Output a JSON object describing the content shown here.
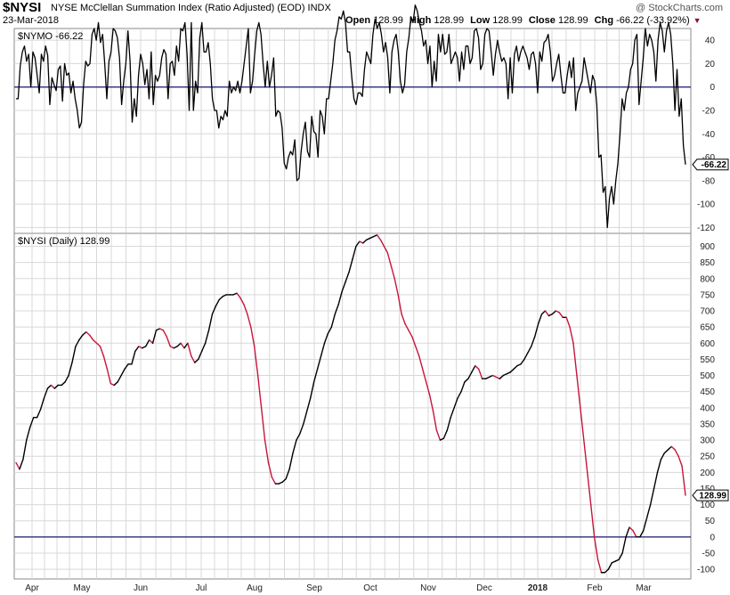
{
  "header": {
    "ticker": "$NYSI",
    "description": "NYSE McClellan Summation Index (Ratio Adjusted) (EOD)  INDX",
    "date": "23-Mar-2018",
    "copyright": "@ StockCharts.com",
    "open_label": "Open",
    "open": "128.99",
    "high_label": "High",
    "high": "128.99",
    "low_label": "Low",
    "low": "128.99",
    "close_label": "Close",
    "close": "128.99",
    "chg_label": "Chg",
    "chg": "-66.22 (-33.92%)"
  },
  "colors": {
    "line": "#000000",
    "down_line": "#c8143c",
    "zero_line": "#1a1a6e",
    "grid": "#d8d8d8",
    "down_arrow": "#8b0a3c"
  },
  "chart_data": [
    {
      "id": "nymo",
      "type": "line",
      "panel_label": "$NYMO -66.22",
      "last_value_label": "-66.22",
      "ylim": [
        -125,
        50
      ],
      "yticks": [
        40,
        20,
        0,
        -20,
        -40,
        -60,
        -80,
        -100,
        -120
      ],
      "reference_line": 0,
      "grid": true,
      "x_dates": [
        "2018-03-23"
      ],
      "values": [
        -10,
        -10,
        18,
        30,
        35,
        22,
        28,
        0,
        30,
        25,
        10,
        -5,
        28,
        22,
        35,
        27,
        -15,
        8,
        2,
        -3,
        15,
        18,
        -12,
        20,
        10,
        12,
        -5,
        5,
        -10,
        -20,
        -35,
        -30,
        2,
        22,
        18,
        20,
        45,
        50,
        40,
        55,
        38,
        45,
        20,
        -10,
        22,
        30,
        50,
        48,
        42,
        25,
        -15,
        5,
        20,
        48,
        22,
        -30,
        -10,
        -25,
        10,
        28,
        20,
        2,
        15,
        -10,
        30,
        -15,
        10,
        5,
        10,
        25,
        32,
        28,
        -10,
        20,
        22,
        10,
        35,
        22,
        50,
        48,
        55,
        28,
        -20,
        55,
        -20,
        5,
        -5,
        42,
        55,
        30,
        30,
        38,
        20,
        -10,
        -20,
        -20,
        -35,
        -25,
        -28,
        -20,
        -25,
        5,
        -5,
        0,
        -3,
        5,
        -5,
        5,
        20,
        35,
        50,
        -5,
        5,
        28,
        48,
        55,
        45,
        20,
        0,
        22,
        0,
        10,
        25,
        -25,
        -20,
        -22,
        -35,
        -65,
        -70,
        -60,
        -55,
        -58,
        -45,
        -80,
        -78,
        -55,
        -40,
        -30,
        -55,
        -60,
        -25,
        -38,
        -40,
        -60,
        -20,
        -25,
        -40,
        -10,
        -10,
        5,
        20,
        40,
        48,
        60,
        58,
        65,
        55,
        30,
        30,
        8,
        -10,
        -15,
        -5,
        -5,
        -8,
        15,
        30,
        25,
        20,
        45,
        58,
        50,
        55,
        45,
        30,
        38,
        25,
        -5,
        30,
        40,
        45,
        30,
        5,
        -5,
        2,
        30,
        42,
        60,
        55,
        70,
        65,
        55,
        48,
        35,
        40,
        20,
        35,
        0,
        22,
        5,
        45,
        30,
        45,
        28,
        30,
        45,
        20,
        25,
        30,
        25,
        5,
        30,
        15,
        35,
        35,
        20,
        25,
        48,
        50,
        42,
        15,
        20,
        45,
        50,
        48,
        30,
        10,
        28,
        40,
        30,
        22,
        25,
        20,
        -10,
        25,
        -5,
        28,
        35,
        22,
        30,
        35,
        30,
        25,
        15,
        28,
        30,
        20,
        -5,
        30,
        22,
        38,
        40,
        45,
        30,
        5,
        10,
        20,
        28,
        10,
        -5,
        -5,
        10,
        22,
        8,
        25,
        -20,
        -5,
        0,
        5,
        25,
        15,
        5,
        -5,
        10,
        5,
        -15,
        -60,
        -58,
        -90,
        -85,
        -120,
        -95,
        -85,
        -100,
        -80,
        -65,
        -40,
        -10,
        -20,
        -5,
        0,
        15,
        20,
        40,
        45,
        -15,
        5,
        25,
        50,
        35,
        45,
        40,
        30,
        5,
        40,
        55,
        48,
        30,
        48,
        55,
        45,
        20,
        -20,
        15,
        -25,
        -10,
        -50,
        -66.22
      ]
    },
    {
      "id": "nysi",
      "type": "line",
      "panel_label": "$NYSI (Daily) 128.99",
      "last_value_label": "128.99",
      "ylim": [
        -130,
        940
      ],
      "yticks": [
        900,
        850,
        800,
        750,
        700,
        650,
        600,
        550,
        500,
        450,
        400,
        350,
        300,
        250,
        200,
        150,
        100,
        50,
        0,
        -50,
        -100
      ],
      "reference_line": 0,
      "grid": true,
      "values": [
        230,
        210,
        240,
        300,
        340,
        370,
        370,
        395,
        430,
        460,
        470,
        460,
        470,
        470,
        480,
        500,
        540,
        590,
        610,
        625,
        635,
        625,
        610,
        600,
        590,
        560,
        520,
        475,
        470,
        480,
        500,
        520,
        535,
        535,
        575,
        590,
        585,
        590,
        610,
        600,
        640,
        645,
        640,
        620,
        590,
        585,
        590,
        600,
        585,
        600,
        560,
        540,
        550,
        575,
        600,
        640,
        690,
        715,
        735,
        745,
        750,
        750,
        750,
        755,
        740,
        720,
        690,
        650,
        590,
        500,
        400,
        300,
        230,
        185,
        165,
        165,
        170,
        180,
        210,
        260,
        300,
        320,
        350,
        390,
        430,
        480,
        520,
        560,
        600,
        630,
        650,
        690,
        720,
        760,
        790,
        820,
        860,
        900,
        915,
        910,
        920,
        925,
        930,
        935,
        920,
        900,
        880,
        840,
        800,
        750,
        690,
        660,
        640,
        620,
        590,
        560,
        520,
        480,
        440,
        390,
        330,
        300,
        305,
        330,
        370,
        400,
        430,
        450,
        480,
        490,
        510,
        530,
        520,
        490,
        490,
        495,
        500,
        495,
        490,
        500,
        505,
        510,
        520,
        530,
        535,
        550,
        570,
        590,
        620,
        660,
        690,
        700,
        685,
        690,
        700,
        695,
        680,
        680,
        650,
        600,
        500,
        400,
        300,
        200,
        100,
        0,
        -70,
        -110,
        -110,
        -100,
        -80,
        -75,
        -70,
        -50,
        0,
        30,
        20,
        0,
        0,
        20,
        60,
        100,
        150,
        200,
        240,
        260,
        270,
        280,
        270,
        250,
        220,
        128.99
      ]
    }
  ],
  "x_axis": {
    "labels": [
      "Apr",
      "May",
      "Jun",
      "Jul",
      "Aug",
      "Sep",
      "Oct",
      "Nov",
      "Dec",
      "2018",
      "Feb",
      "Mar"
    ],
    "bold": [
      "2018"
    ]
  }
}
